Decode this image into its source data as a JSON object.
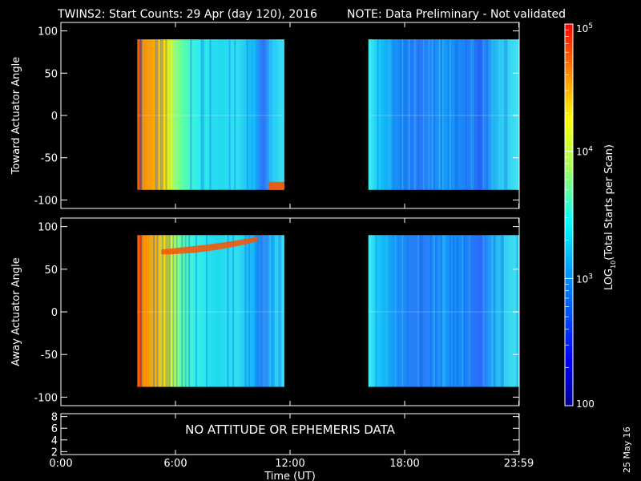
{
  "header": {
    "title": "TWINS2: Start Counts: 29 Apr (day 120), 2016",
    "note": "NOTE: Data Preliminary - Not validated",
    "note_color": "#ff2020"
  },
  "side_date": "25 May 16",
  "chart_data": [
    {
      "type": "heatmap",
      "panel": "toward",
      "ylabel": "Toward Actuator Angle",
      "xlabel": "",
      "xlim": [
        0,
        24
      ],
      "ylim": [
        -110,
        110
      ],
      "yticks": [
        100,
        50,
        0,
        -50,
        -100
      ],
      "data_blocks": [
        {
          "t_start": 4.0,
          "t_end": 11.7,
          "angle_min": -88,
          "angle_max": 90
        },
        {
          "t_start": 16.1,
          "t_end": 23.98,
          "angle_min": -88,
          "angle_max": 90
        }
      ]
    },
    {
      "type": "heatmap",
      "panel": "away",
      "ylabel": "Away Actuator Angle",
      "xlabel": "",
      "xlim": [
        0,
        24
      ],
      "ylim": [
        -110,
        110
      ],
      "yticks": [
        100,
        50,
        0,
        -50,
        -100
      ],
      "data_blocks": [
        {
          "t_start": 4.0,
          "t_end": 11.7,
          "angle_min": -88,
          "angle_max": 90
        },
        {
          "t_start": 16.1,
          "t_end": 23.98,
          "angle_min": -88,
          "angle_max": 90
        }
      ]
    },
    {
      "type": "line",
      "panel": "attitude",
      "message": "NO ATTITUDE OR EPHEMERIS DATA",
      "ylim": [
        1.5,
        8.5
      ],
      "yticks": [
        "8",
        "6",
        "4",
        "2"
      ],
      "xlabel": "Time (UT)",
      "xtick_labels": [
        "0:00",
        "6:00",
        "12:00",
        "18:00",
        "23:59"
      ],
      "xtick_values": [
        0,
        6,
        12,
        18,
        23.98
      ]
    }
  ],
  "colorbar": {
    "label_pre": "LOG",
    "label_sub": "10",
    "label_post": "(Total Starts per Scan)",
    "scale": "log",
    "range": [
      100,
      100000
    ],
    "ticks": [
      {
        "value": 100,
        "label": "100"
      },
      {
        "value": 1000,
        "base": "10",
        "exp": "3"
      },
      {
        "value": 10000,
        "base": "10",
        "exp": "4"
      },
      {
        "value": 100000,
        "base": "10",
        "exp": "5"
      }
    ]
  }
}
